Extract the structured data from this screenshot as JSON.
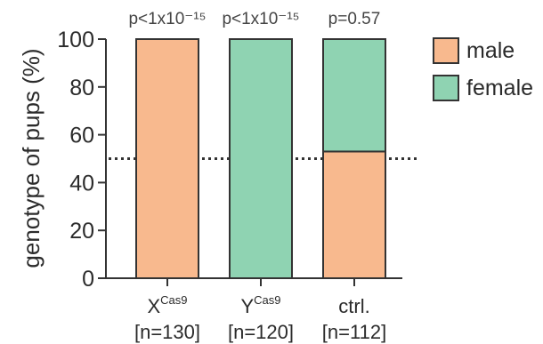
{
  "chart_data": {
    "type": "bar",
    "stacked": true,
    "ylabel": "genotype of pups (%)",
    "ylim": [
      0,
      100
    ],
    "yticks": [
      "0",
      "20",
      "40",
      "60",
      "80",
      "100"
    ],
    "reference_line": {
      "y": 50,
      "style": "dotted"
    },
    "categories": [
      {
        "base": "X",
        "sup": "Cas9",
        "n": "[n=130]"
      },
      {
        "base": "Y",
        "sup": "Cas9",
        "n": "[n=120]"
      },
      {
        "base": "ctrl.",
        "sup": "",
        "n": "[n=112]"
      }
    ],
    "pvalues": [
      "p<1x10⁻¹⁵",
      "p<1x10⁻¹⁵",
      "p=0.57"
    ],
    "series": [
      {
        "name": "male",
        "color": "#f8b98e",
        "values": [
          100,
          0,
          53
        ]
      },
      {
        "name": "female",
        "color": "#8fd3b2",
        "values": [
          0,
          100,
          47
        ]
      }
    ],
    "legend_position": "right"
  }
}
